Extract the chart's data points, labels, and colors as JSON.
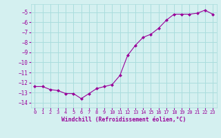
{
  "x": [
    0,
    1,
    2,
    3,
    4,
    5,
    6,
    7,
    8,
    9,
    10,
    11,
    12,
    13,
    14,
    15,
    16,
    17,
    18,
    19,
    20,
    21,
    22,
    23
  ],
  "y": [
    -12.4,
    -12.4,
    -12.7,
    -12.8,
    -13.1,
    -13.1,
    -13.6,
    -13.1,
    -12.6,
    -12.4,
    -12.2,
    -11.3,
    -9.3,
    -8.3,
    -7.5,
    -7.2,
    -6.6,
    -5.8,
    -5.2,
    -5.2,
    -5.2,
    -5.1,
    -4.8,
    -5.2
  ],
  "line_color": "#990099",
  "marker": "D",
  "marker_size": 2,
  "bg_color": "#d4f0f0",
  "grid_color": "#aadddd",
  "xlabel": "Windchill (Refroidissement éolien,°C)",
  "xlabel_color": "#990099",
  "tick_color": "#990099",
  "ylim": [
    -14.5,
    -4.2
  ],
  "xlim": [
    -0.5,
    23.5
  ],
  "yticks": [
    -14,
    -13,
    -12,
    -11,
    -10,
    -9,
    -8,
    -7,
    -6,
    -5
  ],
  "xtick_labels": [
    "0",
    "1",
    "2",
    "3",
    "4",
    "5",
    "6",
    "7",
    "8",
    "9",
    "10",
    "11",
    "12",
    "13",
    "14",
    "15",
    "16",
    "17",
    "18",
    "19",
    "20",
    "21",
    "22",
    "23"
  ]
}
